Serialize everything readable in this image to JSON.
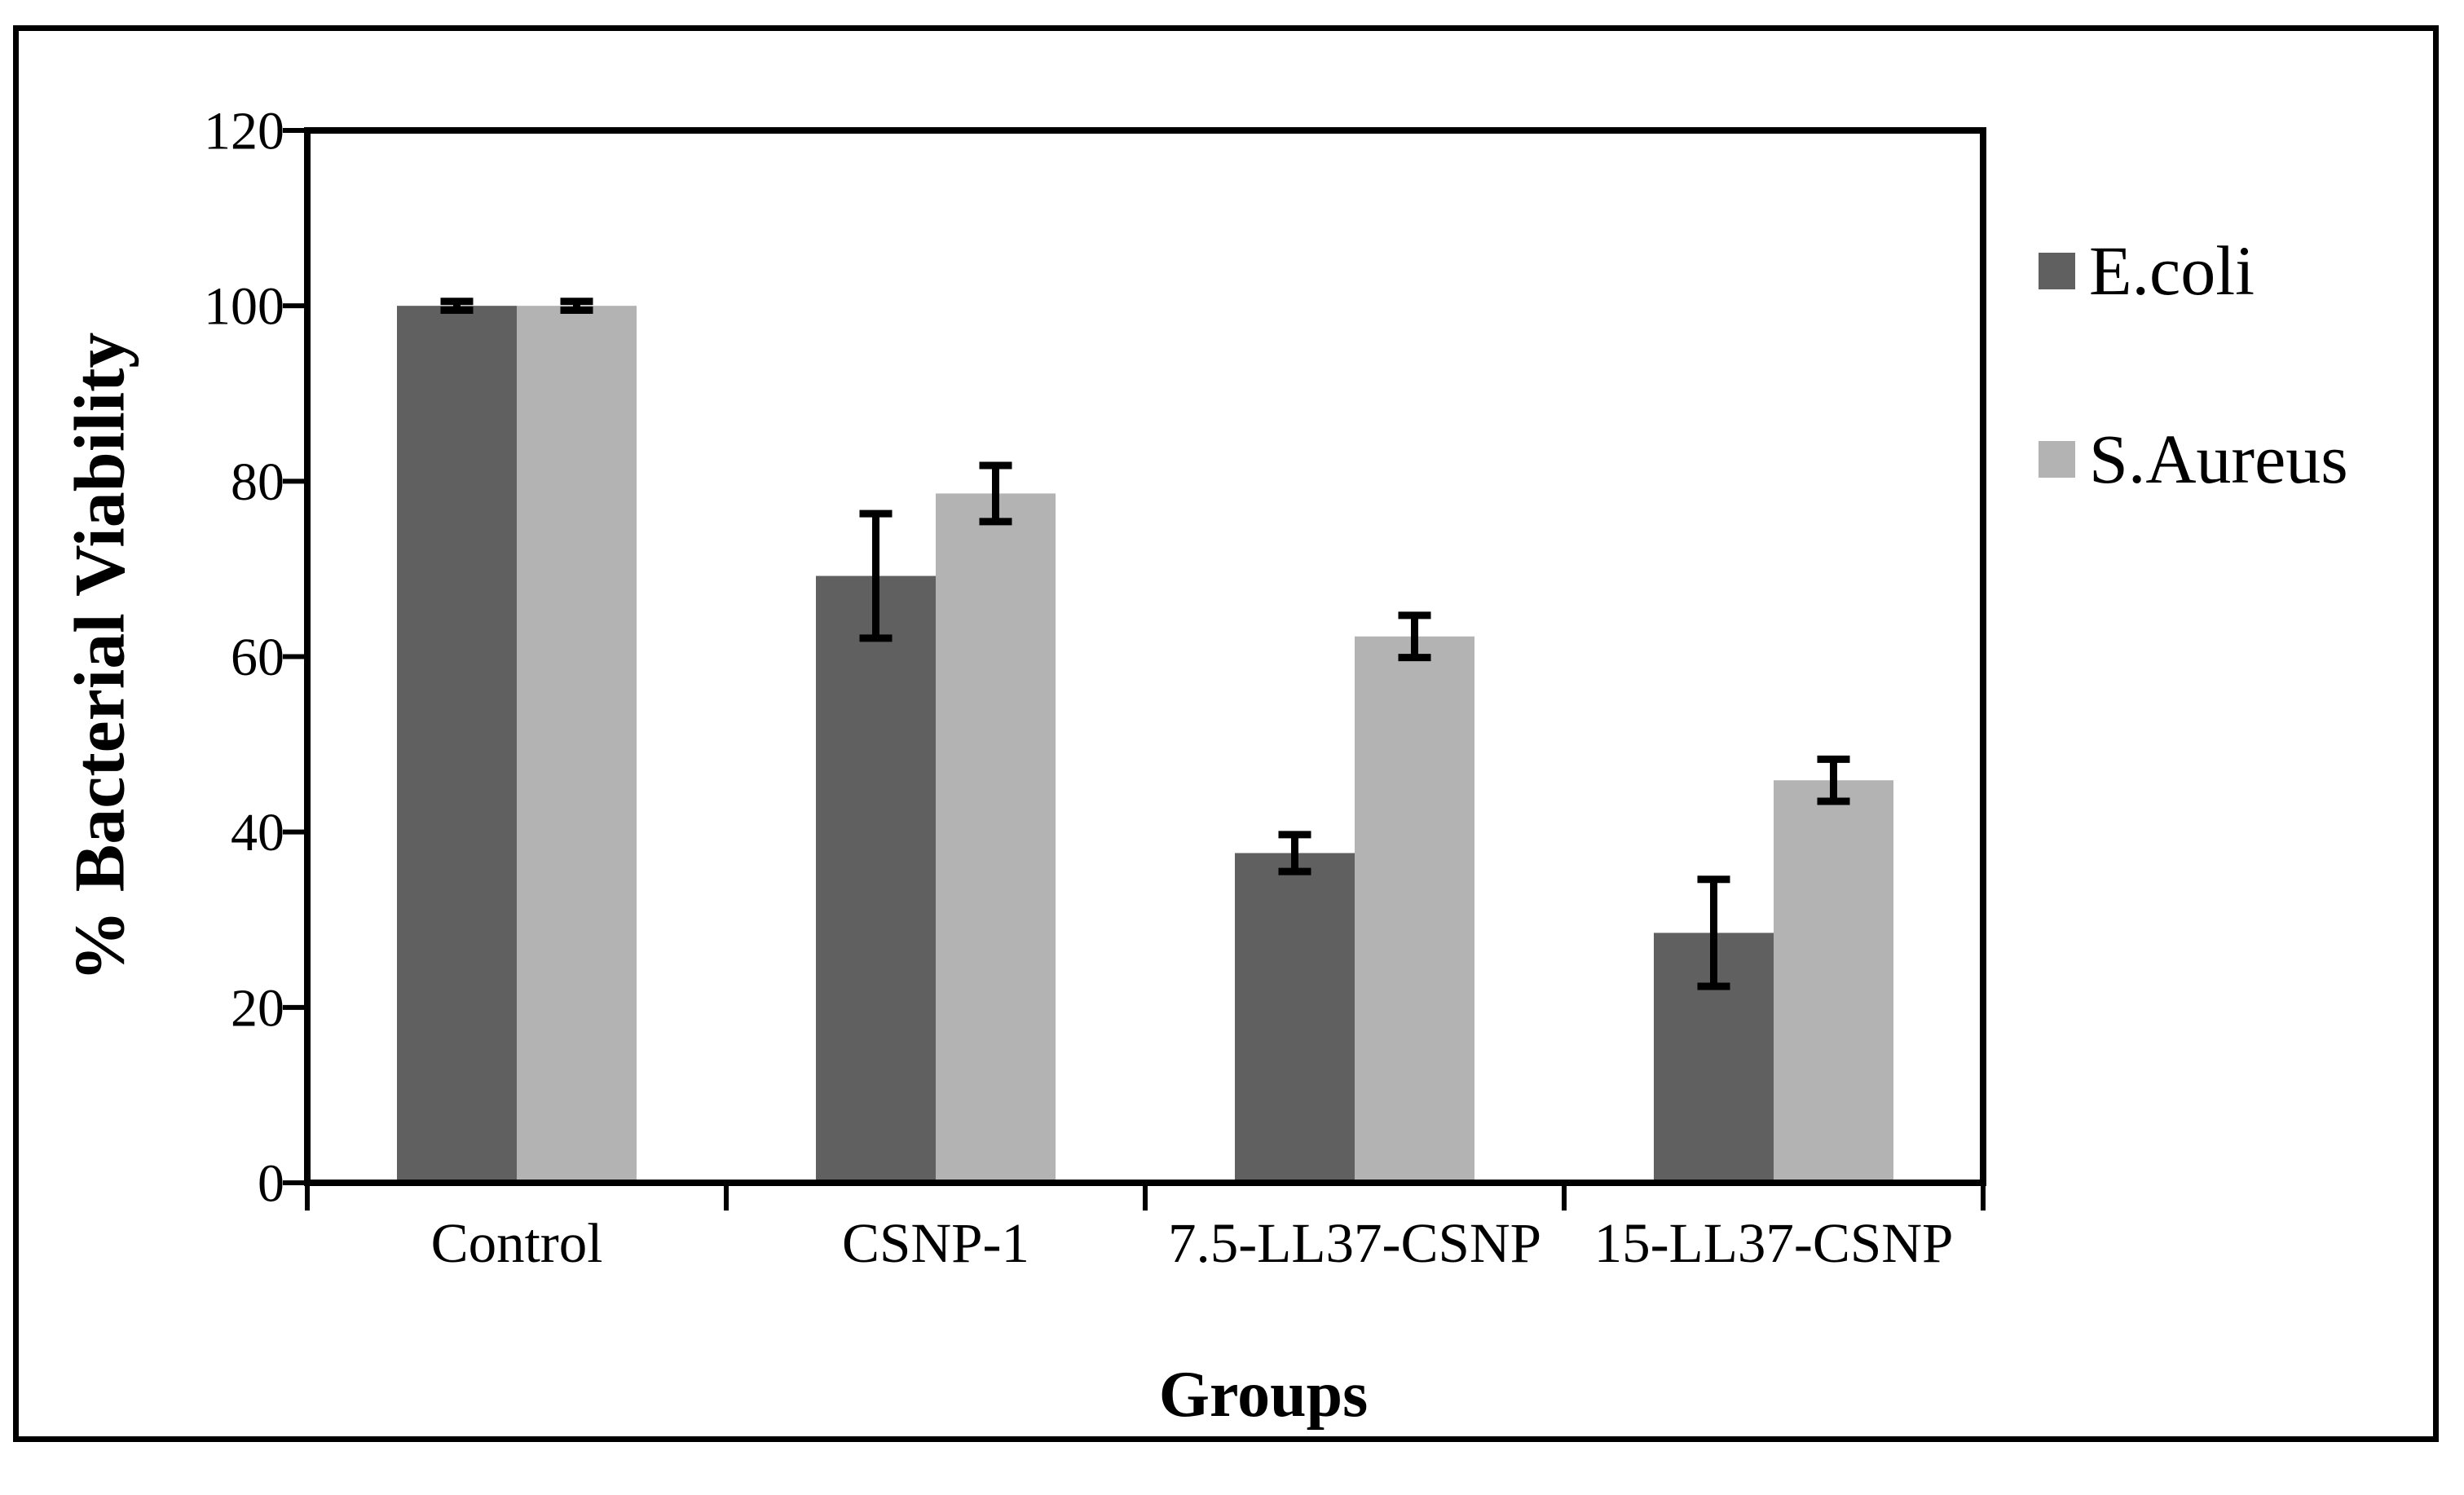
{
  "figure": {
    "background": "#ffffff",
    "border_color": "#000000"
  },
  "chart_data": {
    "type": "bar",
    "title": "",
    "xlabel": "Groups",
    "ylabel": "% Bacterial Viability",
    "categories": [
      "Control",
      "CSNP-1",
      "7.5-LL37-CSNP",
      "15-LL37-CSNP"
    ],
    "series": [
      {
        "name": "E.coli",
        "color": "#606060",
        "values": [
          100,
          69.2,
          37.6,
          28.5
        ],
        "errors": [
          0.5,
          7.1,
          2.1,
          6.1
        ]
      },
      {
        "name": "S.Aureus",
        "color": "#b3b3b3",
        "values": [
          100,
          78.6,
          62.3,
          45.9
        ],
        "errors": [
          0.5,
          3.2,
          2.4,
          2.4
        ]
      }
    ],
    "ylim": [
      0,
      120
    ],
    "yticks": [
      0,
      20,
      40,
      60,
      80,
      100,
      120
    ],
    "grid": "off",
    "legend_position": "right",
    "axis_color": "#000000",
    "error_bar_color": "#000000"
  }
}
